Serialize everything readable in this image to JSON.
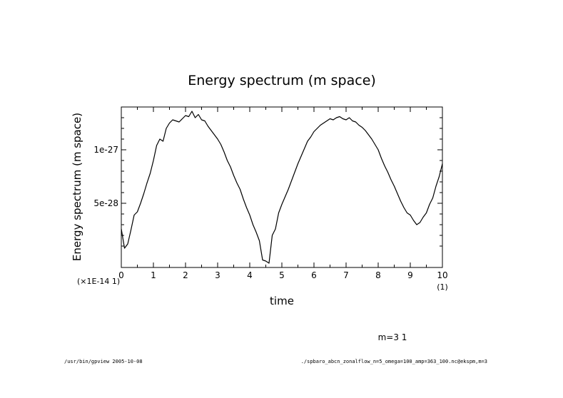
{
  "chart_data": {
    "type": "line",
    "title": "Energy spectrum (m space)",
    "xlabel": "time",
    "ylabel": "Energy spectrum (m space)",
    "x_unit_label": "(1)",
    "y_scale_label": "(×1E-14 1)",
    "xlim": [
      0,
      10
    ],
    "ylim": [
      -1e-28,
      1.4e-27
    ],
    "x_ticks": [
      0,
      1,
      2,
      3,
      4,
      5,
      6,
      7,
      8,
      9,
      10
    ],
    "x_tick_labels": [
      "0",
      "1",
      "2",
      "3",
      "4",
      "5",
      "6",
      "7",
      "8",
      "9",
      "10"
    ],
    "y_ticks": [
      5e-28,
      1e-27
    ],
    "y_tick_labels": [
      "5e-28",
      "1e-27"
    ],
    "grid": false,
    "series": [
      {
        "name": "m=3 1",
        "x": [
          0,
          0.1,
          0.2,
          0.3,
          0.4,
          0.5,
          0.6,
          0.7,
          0.8,
          0.9,
          1.0,
          1.1,
          1.2,
          1.3,
          1.4,
          1.5,
          1.6,
          1.7,
          1.8,
          1.9,
          2.0,
          2.1,
          2.2,
          2.3,
          2.4,
          2.5,
          2.6,
          2.7,
          2.8,
          2.9,
          3.0,
          3.1,
          3.2,
          3.3,
          3.4,
          3.5,
          3.6,
          3.7,
          3.8,
          3.9,
          4.0,
          4.1,
          4.2,
          4.3,
          4.4,
          4.5,
          4.6,
          4.7,
          4.8,
          4.9,
          5.0,
          5.1,
          5.2,
          5.3,
          5.4,
          5.5,
          5.6,
          5.7,
          5.8,
          5.9,
          6.0,
          6.1,
          6.2,
          6.3,
          6.4,
          6.5,
          6.6,
          6.7,
          6.8,
          6.9,
          7.0,
          7.1,
          7.2,
          7.3,
          7.4,
          7.5,
          7.6,
          7.7,
          7.8,
          7.9,
          8.0,
          8.1,
          8.2,
          8.3,
          8.4,
          8.5,
          8.6,
          8.7,
          8.8,
          8.9,
          9.0,
          9.1,
          9.2,
          9.3,
          9.4,
          9.5,
          9.6,
          9.7,
          9.8,
          9.9,
          10.0
        ],
        "y": [
          2.6e-28,
          8e-29,
          1.2e-28,
          2.5e-28,
          3.9e-28,
          4.2e-28,
          5e-28,
          5.9e-28,
          6.9e-28,
          7.8e-28,
          9e-28,
          1.04e-27,
          1.1e-27,
          1.08e-27,
          1.2e-27,
          1.25e-27,
          1.28e-27,
          1.27e-27,
          1.26e-27,
          1.29e-27,
          1.32e-27,
          1.31e-27,
          1.36e-27,
          1.3e-27,
          1.33e-27,
          1.28e-27,
          1.27e-27,
          1.22e-27,
          1.18e-27,
          1.14e-27,
          1.1e-27,
          1.05e-27,
          9.8e-28,
          9e-28,
          8.4e-28,
          7.6e-28,
          6.9e-28,
          6.3e-28,
          5.4e-28,
          4.6e-28,
          3.9e-28,
          3e-28,
          2.3e-28,
          1.5e-28,
          -3e-29,
          -4e-29,
          -6e-29,
          2e-28,
          2.6e-28,
          4.1e-28,
          4.9e-28,
          5.6e-28,
          6.3e-28,
          7.1e-28,
          7.9e-28,
          8.7e-28,
          9.4e-28,
          1.01e-27,
          1.08e-27,
          1.12e-27,
          1.17e-27,
          1.2e-27,
          1.23e-27,
          1.25e-27,
          1.27e-27,
          1.29e-27,
          1.28e-27,
          1.3e-27,
          1.31e-27,
          1.29e-27,
          1.28e-27,
          1.3e-27,
          1.27e-27,
          1.26e-27,
          1.23e-27,
          1.21e-27,
          1.18e-27,
          1.14e-27,
          1.1e-27,
          1.05e-27,
          1e-27,
          9.2e-28,
          8.5e-28,
          7.9e-28,
          7.2e-28,
          6.6e-28,
          5.9e-28,
          5.2e-28,
          4.6e-28,
          4.1e-28,
          3.9e-28,
          3.4e-28,
          3e-28,
          3.2e-28,
          3.7e-28,
          4.1e-28,
          4.9e-28,
          5.5e-28,
          6.6e-28,
          7.5e-28,
          8.7e-28
        ]
      }
    ]
  },
  "legend_text": "m=3 1",
  "footer_left": "/usr/bin/gpview 2005-10-08",
  "footer_right": "./spbaro_abcn_zonalflow_n=5_omega=100_amp=363_100.nc@ekspm,m=3"
}
